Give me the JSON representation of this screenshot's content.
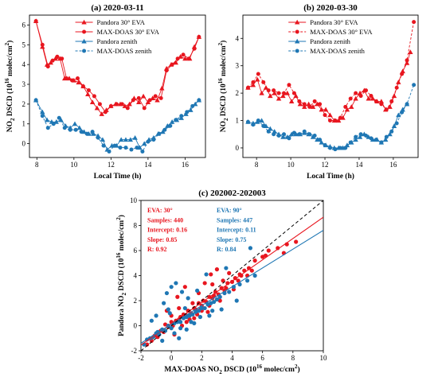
{
  "colors": {
    "red": "#e8161f",
    "blue": "#1f77b4",
    "one_to_one": "#000000"
  },
  "chart_data": [
    {
      "type": "line",
      "title": "(a) 2020-03-11",
      "xlabel": "Local Time (h)",
      "ylabel_prefix": "NO",
      "ylabel_sub": "2",
      "ylabel_mid": " DSCD (10",
      "ylabel_sup": "16",
      "ylabel_unit": " molec/cm",
      "ylabel_sup2": "2",
      "ylabel_end": ")",
      "xlim": [
        7.6,
        17.1
      ],
      "ylim": [
        -0.7,
        6.5
      ],
      "xticks": [
        8,
        10,
        12,
        14,
        16
      ],
      "yticks": [
        0,
        1,
        2,
        3,
        4,
        5,
        6
      ],
      "legend_position": "top-center",
      "series": [
        {
          "name": "Pandora 30° EVA",
          "color": "red",
          "marker": "triangle",
          "dash": false,
          "x": [
            7.95,
            8.3,
            8.55,
            8.75,
            9.0,
            9.25,
            9.5,
            9.75,
            10.0,
            10.25,
            10.5,
            10.75,
            11.0,
            11.25,
            11.5,
            11.75,
            12.0,
            12.25,
            12.5,
            12.75,
            13.0,
            13.25,
            13.5,
            13.75,
            14.0,
            14.25,
            14.5,
            14.75,
            15.0,
            15.25,
            15.5,
            15.75,
            16.0,
            16.25,
            16.5,
            16.75
          ],
          "y": [
            6.2,
            4.9,
            4.0,
            4.1,
            4.3,
            4.3,
            3.3,
            3.3,
            3.2,
            3.1,
            2.9,
            2.5,
            2.1,
            1.8,
            1.5,
            1.7,
            1.9,
            2.0,
            2.0,
            1.9,
            2.0,
            2.3,
            2.1,
            2.4,
            2.1,
            2.3,
            2.2,
            2.8,
            3.8,
            4.0,
            4.1,
            4.4,
            4.3,
            4.3,
            4.9,
            5.4
          ]
        },
        {
          "name": "MAX-DOAS 30° EVA",
          "color": "red",
          "marker": "circle",
          "dash": false,
          "x": [
            7.95,
            8.3,
            8.6,
            8.85,
            9.1,
            9.35,
            9.6,
            9.9,
            10.2,
            10.5,
            10.8,
            11.1,
            11.4,
            11.7,
            12.0,
            12.3,
            12.6,
            12.9,
            13.2,
            13.5,
            13.8,
            14.1,
            14.4,
            14.7,
            15.0,
            15.3,
            15.6,
            15.9,
            16.2,
            16.5,
            16.75
          ],
          "y": [
            6.2,
            5.0,
            3.9,
            4.2,
            4.4,
            4.3,
            3.3,
            3.2,
            3.3,
            2.9,
            2.7,
            2.4,
            2.0,
            1.6,
            1.9,
            2.0,
            2.0,
            1.8,
            2.2,
            2.3,
            1.8,
            2.2,
            2.4,
            2.3,
            3.7,
            4.0,
            4.3,
            4.5,
            4.3,
            4.8,
            5.4
          ]
        },
        {
          "name": "Pandora zenith",
          "color": "blue",
          "marker": "triangle",
          "dash": false,
          "x": [
            7.95,
            8.3,
            8.55,
            8.8,
            9.05,
            9.3,
            9.55,
            9.8,
            10.05,
            10.3,
            10.55,
            10.8,
            11.05,
            11.3,
            11.55,
            11.8,
            12.05,
            12.3,
            12.55,
            12.8,
            13.05,
            13.3,
            13.55,
            13.8,
            14.05,
            14.3,
            14.55,
            14.8,
            15.05,
            15.3,
            15.55,
            15.8,
            16.05,
            16.3,
            16.55,
            16.75
          ],
          "y": [
            2.2,
            1.6,
            1.2,
            1.1,
            1.1,
            1.2,
            0.9,
            0.8,
            1.0,
            0.8,
            0.6,
            0.5,
            0.5,
            0.4,
            0.2,
            -0.3,
            -0.1,
            -0.1,
            0.2,
            0.2,
            0.2,
            0.3,
            -0.2,
            0.0,
            0.2,
            0.3,
            0.5,
            0.6,
            0.9,
            1.1,
            1.2,
            1.3,
            1.5,
            1.7,
            2.0,
            2.2
          ]
        },
        {
          "name": "MAX-DOAS zenith",
          "color": "blue",
          "marker": "circle",
          "dash": true,
          "x": [
            7.95,
            8.3,
            8.6,
            8.9,
            9.2,
            9.5,
            9.8,
            10.1,
            10.4,
            10.7,
            11.0,
            11.3,
            11.6,
            11.9,
            12.2,
            12.5,
            12.8,
            13.1,
            13.4,
            13.7,
            14.0,
            14.3,
            14.6,
            14.9,
            15.2,
            15.5,
            15.8,
            16.1,
            16.4,
            16.75
          ],
          "y": [
            2.2,
            1.4,
            0.8,
            1.0,
            1.3,
            0.8,
            0.7,
            0.7,
            0.6,
            0.5,
            0.6,
            0.3,
            -0.1,
            -0.4,
            -0.1,
            -0.2,
            -0.2,
            -0.3,
            -0.2,
            -0.4,
            0.1,
            0.2,
            0.5,
            0.7,
            0.9,
            1.2,
            1.4,
            1.6,
            1.9,
            2.2
          ]
        }
      ]
    },
    {
      "type": "line",
      "title": "(b) 2020-03-30",
      "xlabel": "Local Time (h)",
      "ylabel_prefix": "NO",
      "ylabel_sub": "2",
      "ylabel_mid": " DSCD (10",
      "ylabel_sup": "16",
      "ylabel_unit": " molec/cm",
      "ylabel_sup2": "2",
      "ylabel_end": ")",
      "xlim": [
        7.2,
        17.45
      ],
      "ylim": [
        -0.35,
        4.85
      ],
      "xticks": [
        8,
        10,
        12,
        14,
        16
      ],
      "yticks": [
        0,
        1,
        2,
        3,
        4
      ],
      "legend_position": "top-center",
      "series": [
        {
          "name": "Pandora 30° EVA",
          "color": "red",
          "marker": "triangle",
          "dash": false,
          "x": [
            7.5,
            7.8,
            8.05,
            8.3,
            8.55,
            8.8,
            9.05,
            9.3,
            9.55,
            9.8,
            10.05,
            10.3,
            10.55,
            10.8,
            11.05,
            11.3,
            11.55,
            11.8,
            12.05,
            12.3,
            12.55,
            12.8,
            13.05,
            13.3,
            13.55,
            13.8,
            14.05,
            14.3,
            14.55,
            14.8,
            15.05,
            15.3,
            15.55,
            15.8,
            16.05,
            16.3,
            16.55,
            16.8,
            17.0
          ],
          "y": [
            2.2,
            2.3,
            2.5,
            2.0,
            2.2,
            1.9,
            2.0,
            1.8,
            1.9,
            2.0,
            1.7,
            1.9,
            1.6,
            1.5,
            1.6,
            1.5,
            1.6,
            1.4,
            1.4,
            1.2,
            1.0,
            1.0,
            1.1,
            1.4,
            1.5,
            1.8,
            2.0,
            2.1,
            1.8,
            1.8,
            1.7,
            1.7,
            1.4,
            1.5,
            1.9,
            2.4,
            2.8,
            3.1,
            3.5
          ]
        },
        {
          "name": "MAX-DOAS 30° EVA",
          "color": "red",
          "marker": "circle",
          "dash": true,
          "x": [
            7.5,
            7.8,
            8.1,
            8.4,
            8.7,
            9.0,
            9.3,
            9.6,
            9.9,
            10.2,
            10.5,
            10.8,
            11.1,
            11.4,
            11.7,
            12.0,
            12.3,
            12.6,
            12.9,
            13.2,
            13.5,
            13.8,
            14.1,
            14.4,
            14.7,
            15.0,
            15.3,
            15.6,
            15.9,
            16.2,
            16.5,
            16.8,
            17.2
          ],
          "y": [
            2.2,
            2.4,
            2.7,
            2.4,
            2.1,
            2.1,
            2.0,
            2.0,
            2.3,
            2.0,
            1.7,
            1.6,
            1.5,
            1.7,
            1.6,
            1.2,
            1.0,
            1.0,
            1.1,
            1.5,
            1.8,
            2.0,
            1.9,
            2.1,
            1.9,
            1.7,
            1.6,
            1.4,
            1.7,
            2.2,
            2.7,
            3.2,
            4.6
          ]
        },
        {
          "name": "Pandora zenith",
          "color": "blue",
          "marker": "triangle",
          "dash": false,
          "x": [
            7.5,
            7.8,
            8.05,
            8.3,
            8.55,
            8.8,
            9.05,
            9.3,
            9.55,
            9.8,
            10.05,
            10.3,
            10.55,
            10.8,
            11.05,
            11.3,
            11.55,
            11.8,
            12.05,
            12.3,
            12.55,
            12.8,
            13.05,
            13.3,
            13.55,
            13.8,
            14.05,
            14.3,
            14.55,
            14.8,
            15.05,
            15.3,
            15.55,
            15.8,
            16.05,
            16.3,
            16.55,
            16.8
          ],
          "y": [
            0.95,
            0.9,
            0.95,
            1.0,
            0.8,
            0.7,
            0.6,
            0.5,
            0.4,
            0.4,
            0.5,
            0.5,
            0.5,
            0.55,
            0.5,
            0.4,
            0.3,
            0.2,
            0.1,
            0.05,
            0.0,
            0.0,
            0.0,
            0.1,
            0.2,
            0.3,
            0.4,
            0.5,
            0.4,
            0.3,
            0.3,
            0.2,
            0.3,
            0.5,
            0.8,
            1.2,
            1.4,
            1.6
          ]
        },
        {
          "name": "MAX-DOAS zenith",
          "color": "blue",
          "marker": "circle",
          "dash": true,
          "x": [
            7.5,
            7.8,
            8.1,
            8.4,
            8.7,
            9.0,
            9.3,
            9.6,
            9.9,
            10.2,
            10.5,
            10.8,
            11.1,
            11.4,
            11.7,
            12.0,
            12.3,
            12.6,
            12.9,
            13.2,
            13.5,
            13.8,
            14.1,
            14.4,
            14.7,
            15.0,
            15.3,
            15.6,
            15.9,
            16.2,
            16.5,
            16.8,
            17.2
          ],
          "y": [
            0.95,
            0.85,
            1.0,
            0.8,
            0.6,
            0.5,
            0.45,
            0.5,
            0.35,
            0.55,
            0.5,
            0.6,
            0.5,
            0.45,
            0.3,
            0.1,
            0.0,
            -0.05,
            0.0,
            0.0,
            0.2,
            0.4,
            0.5,
            0.45,
            0.35,
            0.3,
            0.2,
            0.4,
            0.6,
            0.9,
            1.3,
            1.6,
            2.3
          ]
        }
      ]
    },
    {
      "type": "scatter",
      "title": "(c) 202002-202003",
      "xlabel_prefix": "MAX-DOAS NO",
      "xlabel_sub": "2",
      "xlabel_mid": " DSCD (10",
      "xlabel_sup": "16",
      "xlabel_unit": " molec/cm",
      "xlabel_sup2": "2",
      "xlabel_end": ")",
      "ylabel_prefix": "Pandora NO",
      "ylabel_sub": "2",
      "ylabel_mid": " DSCD (10",
      "ylabel_sup": "16",
      "ylabel_unit": " molec/cm",
      "ylabel_sup2": "2",
      "ylabel_end": ")",
      "xlim": [
        -2,
        10
      ],
      "ylim": [
        -2,
        10
      ],
      "xticks": [
        -2,
        0,
        2,
        4,
        6,
        8,
        10
      ],
      "yticks": [
        -2,
        0,
        2,
        4,
        6,
        8,
        10
      ],
      "one_to_one_line": true,
      "stats": [
        {
          "color": "red",
          "lines": [
            "EVA: 30°",
            "Samples: 440",
            "Intercept: 0.16",
            "Slope: 0.85",
            "R: 0.92"
          ]
        },
        {
          "color": "blue",
          "lines": [
            "EVA: 90°",
            "Samples: 447",
            "Intercept: 0.11",
            "Slope: 0.75",
            "R: 0.84"
          ]
        }
      ],
      "fits": [
        {
          "color": "red",
          "intercept": 0.16,
          "slope": 0.85
        },
        {
          "color": "blue",
          "intercept": 0.11,
          "slope": 0.75
        }
      ],
      "series": [
        {
          "color": "red",
          "x": [
            -1.6,
            -1.3,
            -1.1,
            -0.9,
            -0.7,
            -0.5,
            -0.4,
            -0.2,
            0.0,
            0.1,
            0.3,
            0.5,
            0.6,
            0.8,
            1.0,
            1.1,
            1.3,
            1.5,
            1.6,
            1.8,
            2.0,
            2.1,
            2.3,
            2.5,
            2.7,
            2.9,
            3.1,
            3.3,
            3.5,
            3.7,
            4.0,
            4.2,
            4.5,
            4.8,
            5.1,
            5.5,
            6.0,
            6.4,
            7.0,
            7.6,
            8.2,
            0.4,
            0.9,
            1.4,
            2.2,
            2.6,
            3.0,
            3.4,
            1.7,
            2.4,
            3.2,
            4.1,
            5.0,
            0.2,
            0.7,
            1.2,
            1.9,
            2.8,
            3.6,
            4.4,
            -0.3,
            0.5,
            1.0,
            1.5,
            2.0,
            2.5,
            3.0,
            0.0,
            1.8,
            2.7,
            3.8,
            4.6,
            5.3,
            6.2,
            7.4
          ],
          "y": [
            -1.5,
            -1.2,
            -0.8,
            -0.9,
            -0.4,
            -0.5,
            0.1,
            -0.1,
            0.3,
            0.0,
            0.4,
            0.5,
            0.7,
            0.9,
            0.8,
            1.2,
            1.0,
            1.4,
            1.3,
            1.8,
            1.6,
            2.0,
            1.9,
            2.3,
            2.2,
            2.7,
            2.5,
            3.0,
            2.8,
            3.4,
            3.5,
            3.8,
            4.1,
            4.4,
            4.6,
            5.2,
            5.5,
            6.0,
            6.2,
            6.5,
            6.7,
            2.3,
            3.1,
            1.8,
            3.4,
            4.1,
            4.5,
            3.6,
            0.9,
            1.1,
            2.0,
            2.9,
            4.0,
            -0.7,
            0.0,
            0.5,
            1.3,
            2.4,
            3.0,
            3.6,
            1.2,
            1.4,
            0.3,
            0.6,
            1.2,
            1.6,
            2.1,
            0.8,
            2.6,
            3.3,
            4.2,
            4.0,
            4.4,
            5.6,
            5.8
          ]
        },
        {
          "color": "blue",
          "x": [
            -1.8,
            -1.6,
            -1.4,
            -1.2,
            -1.0,
            -0.8,
            -0.6,
            -0.4,
            -0.2,
            0.0,
            0.2,
            0.4,
            0.6,
            0.8,
            1.0,
            1.2,
            1.4,
            1.6,
            1.8,
            2.0,
            2.2,
            2.4,
            2.6,
            2.8,
            3.0,
            3.2,
            3.5,
            3.8,
            4.1,
            4.5,
            5.0,
            5.5,
            -0.3,
            -0.5,
            0.0,
            0.3,
            0.7,
            1.1,
            -0.9,
            -0.6,
            0.5,
            1.5,
            2.5,
            3.3,
            4.3,
            5.2,
            -1.3,
            0.9,
            1.7,
            2.3,
            -0.1,
            0.2,
            0.6,
            1.3,
            1.9,
            2.7,
            -1.0,
            -0.2,
            1.0,
            3.6
          ],
          "y": [
            -1.5,
            -1.1,
            -1.0,
            -0.9,
            -0.6,
            -0.7,
            -0.3,
            -0.4,
            0.0,
            -0.2,
            0.2,
            0.3,
            0.3,
            0.6,
            0.7,
            0.8,
            0.9,
            1.1,
            1.2,
            1.4,
            1.4,
            1.7,
            1.8,
            1.9,
            2.1,
            2.3,
            2.6,
            2.7,
            3.1,
            3.3,
            3.6,
            4.0,
            2.6,
            1.8,
            3.1,
            3.4,
            2.7,
            2.2,
            -0.5,
            -1.2,
            -1.0,
            0.2,
            0.8,
            1.3,
            2.0,
            6.2,
            0.4,
            1.4,
            2.8,
            4.1,
            1.0,
            -0.6,
            -0.2,
            0.3,
            0.7,
            1.2,
            0.8,
            1.3,
            -0.3,
            4.6
          ]
        }
      ]
    }
  ]
}
